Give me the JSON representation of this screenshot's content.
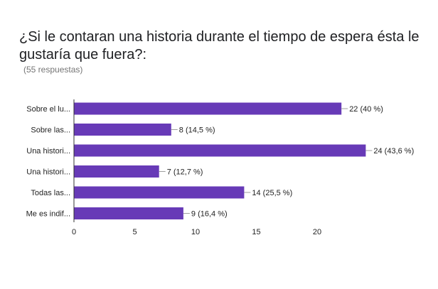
{
  "title": "¿Si le contaran una historia durante el tiempo de espera ésta le gustaría que fuera?:",
  "subtitle": "(55 respuestas)",
  "chart_data": {
    "type": "bar",
    "orientation": "horizontal",
    "categories": [
      "Sobre el lu...",
      "Sobre las...",
      "Una histori...",
      "Una histori...",
      "Todas las...",
      "Me es indif..."
    ],
    "values": [
      22,
      8,
      24,
      7,
      14,
      9
    ],
    "data_labels": [
      "22 (40 %)",
      "8 (14,5 %)",
      "24 (43,6 %)",
      "7 (12,7 %)",
      "14 (25,5 %)",
      "9 (16,4 %)"
    ],
    "xlim": [
      0,
      28
    ],
    "xticks": [
      0,
      5,
      10,
      15,
      20
    ],
    "grid": false,
    "colors": {
      "bar": "#673ab7",
      "axis": "#333333",
      "label": "#222222",
      "leader": "#9e9e9e"
    }
  }
}
